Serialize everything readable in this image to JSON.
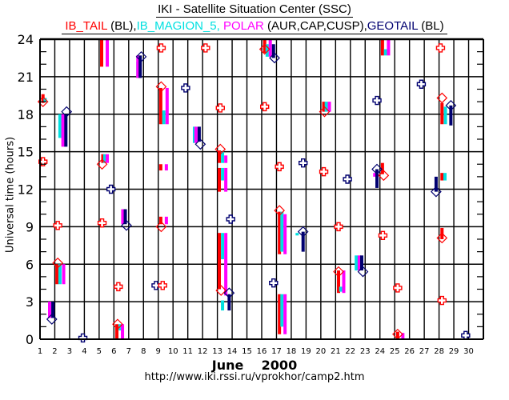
{
  "chart_data": {
    "type": "scatter",
    "title": "IKI - Satellite Situation Center (SSC)",
    "legend": [
      {
        "name": "IB_TAIL",
        "suffix": " (BL),",
        "color": "#ff0000"
      },
      {
        "name": "IB_MAGION_5,",
        "suffix": " ",
        "color": "#00e0e0"
      },
      {
        "name": "POLAR",
        "suffix": " (AUR,CAP,CUSP),",
        "color": "#ff00ff"
      },
      {
        "name": "GEOTAIL",
        "suffix": " (BL)",
        "color": "#000070"
      }
    ],
    "legend_placement": "top",
    "xlabel": "June    2000",
    "ylabel": "Universal time (hours)",
    "footer": "http://www.iki.rssi.ru/vprokhor/camp2.htm",
    "xlim": [
      1,
      31
    ],
    "ylim": [
      0,
      24
    ],
    "x_ticks": [
      1,
      2,
      3,
      4,
      5,
      6,
      7,
      8,
      9,
      10,
      11,
      12,
      13,
      14,
      15,
      16,
      17,
      18,
      19,
      20,
      21,
      22,
      23,
      24,
      25,
      26,
      27,
      28,
      29,
      30
    ],
    "y_ticks": [
      0,
      3,
      6,
      9,
      12,
      15,
      18,
      21,
      24
    ],
    "grid": true,
    "series_colors": {
      "IB_TAIL": "#ff0000",
      "IB_MAGION_5": "#00e0e0",
      "POLAR": "#ff00ff",
      "GEOTAIL": "#000070"
    },
    "intervals": [
      {
        "series": "IB_TAIL",
        "day": 1.2,
        "from": 18.9,
        "to": 19.6
      },
      {
        "series": "IB_MAGION_5",
        "day": 1.35,
        "from": 19.0,
        "to": 19.3
      },
      {
        "series": "IB_MAGION_5",
        "day": 2.35,
        "from": 16.1,
        "to": 18.0
      },
      {
        "series": "POLAR",
        "day": 2.55,
        "from": 15.4,
        "to": 18.0
      },
      {
        "series": "GEOTAIL",
        "day": 2.75,
        "from": 15.4,
        "to": 18.0
      },
      {
        "series": "IB_TAIL",
        "day": 2.15,
        "from": 4.4,
        "to": 6.0
      },
      {
        "series": "IB_MAGION_5",
        "day": 2.35,
        "from": 4.4,
        "to": 6.0
      },
      {
        "series": "POLAR",
        "day": 2.6,
        "from": 4.4,
        "to": 6.0
      },
      {
        "series": "POLAR",
        "day": 1.65,
        "from": 1.7,
        "to": 3.0
      },
      {
        "series": "GEOTAIL",
        "day": 1.87,
        "from": 1.7,
        "to": 3.0
      },
      {
        "series": "IB_TAIL",
        "day": 5.17,
        "from": 21.8,
        "to": 24.0
      },
      {
        "series": "POLAR",
        "day": 5.55,
        "from": 21.8,
        "to": 24.0
      },
      {
        "series": "IB_TAIL",
        "day": 5.25,
        "from": 14.1,
        "to": 14.8
      },
      {
        "series": "IB_MAGION_5",
        "day": 5.38,
        "from": 14.1,
        "to": 14.8
      },
      {
        "series": "POLAR",
        "day": 5.55,
        "from": 14.1,
        "to": 14.8
      },
      {
        "series": "IB_TAIL",
        "day": 6.2,
        "from": 0.0,
        "to": 1.2
      },
      {
        "series": "IB_MAGION_5",
        "day": 6.42,
        "from": 0.7,
        "to": 1.2
      },
      {
        "series": "POLAR",
        "day": 6.58,
        "from": 0.0,
        "to": 1.2
      },
      {
        "series": "POLAR",
        "day": 6.6,
        "from": 9.2,
        "to": 10.4
      },
      {
        "series": "GEOTAIL",
        "day": 6.77,
        "from": 9.2,
        "to": 10.4
      },
      {
        "series": "IB_MAGION_5",
        "day": 7.62,
        "from": 21.0,
        "to": 22.2
      },
      {
        "series": "POLAR",
        "day": 7.62,
        "from": 20.9,
        "to": 22.7
      },
      {
        "series": "GEOTAIL",
        "day": 7.78,
        "from": 20.9,
        "to": 22.7
      },
      {
        "series": "IB_TAIL",
        "day": 9.17,
        "from": 17.2,
        "to": 20.1
      },
      {
        "series": "IB_MAGION_5",
        "day": 9.38,
        "from": 17.2,
        "to": 18.3
      },
      {
        "series": "POLAR",
        "day": 9.6,
        "from": 17.2,
        "to": 20.1
      },
      {
        "series": "IB_TAIL",
        "day": 9.17,
        "from": 13.5,
        "to": 14.0
      },
      {
        "series": "POLAR",
        "day": 9.55,
        "from": 13.5,
        "to": 14.0
      },
      {
        "series": "IB_TAIL",
        "day": 9.17,
        "from": 9.2,
        "to": 9.8
      },
      {
        "series": "POLAR",
        "day": 9.55,
        "from": 9.2,
        "to": 9.8
      },
      {
        "series": "IB_MAGION_5",
        "day": 11.45,
        "from": 15.7,
        "to": 17.0
      },
      {
        "series": "POLAR",
        "day": 11.55,
        "from": 15.7,
        "to": 17.0
      },
      {
        "series": "GEOTAIL",
        "day": 11.77,
        "from": 15.8,
        "to": 17.0
      },
      {
        "series": "IB_TAIL",
        "day": 13.13,
        "from": 14.1,
        "to": 15.1
      },
      {
        "series": "IB_MAGION_5",
        "day": 13.35,
        "from": 14.1,
        "to": 15.0
      },
      {
        "series": "POLAR",
        "day": 13.57,
        "from": 14.1,
        "to": 14.7
      },
      {
        "series": "IB_TAIL",
        "day": 13.13,
        "from": 11.8,
        "to": 13.7
      },
      {
        "series": "IB_MAGION_5",
        "day": 13.35,
        "from": 12.7,
        "to": 13.7
      },
      {
        "series": "POLAR",
        "day": 13.57,
        "from": 11.8,
        "to": 13.7
      },
      {
        "series": "IB_TAIL",
        "day": 13.13,
        "from": 4.0,
        "to": 8.5
      },
      {
        "series": "IB_MAGION_5",
        "day": 13.35,
        "from": 6.4,
        "to": 8.5
      },
      {
        "series": "POLAR",
        "day": 13.57,
        "from": 3.5,
        "to": 8.5
      },
      {
        "series": "IB_MAGION_5",
        "day": 13.35,
        "from": 2.3,
        "to": 3.1
      },
      {
        "series": "GEOTAIL",
        "day": 13.8,
        "from": 2.3,
        "to": 3.6
      },
      {
        "series": "IB_TAIL",
        "day": 16.2,
        "from": 22.9,
        "to": 24.0
      },
      {
        "series": "IB_MAGION_5",
        "day": 16.37,
        "from": 22.6,
        "to": 23.6
      },
      {
        "series": "POLAR",
        "day": 16.58,
        "from": 22.6,
        "to": 24.0
      },
      {
        "series": "GEOTAIL",
        "day": 16.8,
        "from": 22.5,
        "to": 23.6
      },
      {
        "series": "IB_TAIL",
        "day": 17.2,
        "from": 6.8,
        "to": 10.2
      },
      {
        "series": "IB_MAGION_5",
        "day": 17.37,
        "from": 7.0,
        "to": 10.2
      },
      {
        "series": "POLAR",
        "day": 17.58,
        "from": 6.8,
        "to": 10.0
      },
      {
        "series": "IB_TAIL",
        "day": 17.2,
        "from": 0.4,
        "to": 3.6
      },
      {
        "series": "IB_MAGION_5",
        "day": 17.37,
        "from": 1.0,
        "to": 3.6
      },
      {
        "series": "POLAR",
        "day": 17.58,
        "from": 0.4,
        "to": 3.6
      },
      {
        "series": "GEOTAIL",
        "day": 18.8,
        "from": 7.0,
        "to": 8.6
      },
      {
        "series": "IB_MAGION_5",
        "day": 18.4,
        "from": 8.3,
        "to": 8.5
      },
      {
        "series": "IB_TAIL",
        "day": 20.2,
        "from": 18.2,
        "to": 19.0
      },
      {
        "series": "IB_MAGION_5",
        "day": 20.37,
        "from": 18.2,
        "to": 19.0
      },
      {
        "series": "POLAR",
        "day": 20.58,
        "from": 18.2,
        "to": 19.0
      },
      {
        "series": "IB_TAIL",
        "day": 21.2,
        "from": 3.7,
        "to": 5.5
      },
      {
        "series": "IB_MAGION_5",
        "day": 21.35,
        "from": 3.8,
        "to": 4.2
      },
      {
        "series": "POLAR",
        "day": 21.55,
        "from": 3.7,
        "to": 5.5
      },
      {
        "series": "IB_MAGION_5",
        "day": 22.4,
        "from": 5.5,
        "to": 6.7
      },
      {
        "series": "POLAR",
        "day": 22.6,
        "from": 5.5,
        "to": 6.7
      },
      {
        "series": "GEOTAIL",
        "day": 22.77,
        "from": 5.5,
        "to": 6.7
      },
      {
        "series": "IB_TAIL",
        "day": 24.17,
        "from": 22.7,
        "to": 24.0
      },
      {
        "series": "IB_MAGION_5",
        "day": 24.38,
        "from": 22.7,
        "to": 23.2
      },
      {
        "series": "POLAR",
        "day": 24.58,
        "from": 22.7,
        "to": 24.0
      },
      {
        "series": "POLAR",
        "day": 23.65,
        "from": 13.0,
        "to": 13.3
      },
      {
        "series": "GEOTAIL",
        "day": 23.8,
        "from": 12.1,
        "to": 13.6
      },
      {
        "series": "IB_TAIL",
        "day": 24.17,
        "from": 13.2,
        "to": 14.1
      },
      {
        "series": "IB_TAIL",
        "day": 25.2,
        "from": 0.0,
        "to": 0.6
      },
      {
        "series": "POLAR",
        "day": 25.55,
        "from": 0.0,
        "to": 0.5
      },
      {
        "series": "IB_TAIL",
        "day": 28.2,
        "from": 17.2,
        "to": 18.9
      },
      {
        "series": "IB_MAGION_5",
        "day": 28.43,
        "from": 17.2,
        "to": 18.6
      },
      {
        "series": "GEOTAIL",
        "day": 28.8,
        "from": 17.1,
        "to": 18.7
      },
      {
        "series": "IB_TAIL",
        "day": 28.2,
        "from": 12.7,
        "to": 13.3
      },
      {
        "series": "IB_MAGION_5",
        "day": 28.4,
        "from": 12.7,
        "to": 13.3
      },
      {
        "series": "GEOTAIL",
        "day": 27.8,
        "from": 11.8,
        "to": 13.0
      },
      {
        "series": "IB_TAIL",
        "day": 28.2,
        "from": 8.0,
        "to": 8.9
      }
    ],
    "diamonds": [
      {
        "series": "IB_TAIL",
        "day": 1.2,
        "hour": 19.0
      },
      {
        "series": "GEOTAIL",
        "day": 2.8,
        "hour": 18.2
      },
      {
        "series": "IB_TAIL",
        "day": 2.2,
        "hour": 6.1
      },
      {
        "series": "GEOTAIL",
        "day": 1.8,
        "hour": 1.6
      },
      {
        "series": "IB_TAIL",
        "day": 5.2,
        "hour": 14.0
      },
      {
        "series": "IB_TAIL",
        "day": 6.25,
        "hour": 1.2
      },
      {
        "series": "GEOTAIL",
        "day": 6.85,
        "hour": 9.1
      },
      {
        "series": "GEOTAIL",
        "day": 7.85,
        "hour": 22.6
      },
      {
        "series": "IB_TAIL",
        "day": 9.2,
        "hour": 20.2
      },
      {
        "series": "IB_TAIL",
        "day": 9.2,
        "hour": 9.0
      },
      {
        "series": "GEOTAIL",
        "day": 11.85,
        "hour": 15.6
      },
      {
        "series": "IB_TAIL",
        "day": 13.2,
        "hour": 15.2
      },
      {
        "series": "IB_TAIL",
        "day": 13.25,
        "hour": 3.9
      },
      {
        "series": "GEOTAIL",
        "day": 13.8,
        "hour": 3.7
      },
      {
        "series": "IB_TAIL",
        "day": 16.2,
        "hour": 23.2
      },
      {
        "series": "GEOTAIL",
        "day": 16.87,
        "hour": 22.5
      },
      {
        "series": "IB_TAIL",
        "day": 17.2,
        "hour": 10.3
      },
      {
        "series": "GEOTAIL",
        "day": 18.8,
        "hour": 8.6
      },
      {
        "series": "IB_TAIL",
        "day": 20.25,
        "hour": 18.2
      },
      {
        "series": "IB_TAIL",
        "day": 21.2,
        "hour": 5.4
      },
      {
        "series": "GEOTAIL",
        "day": 22.85,
        "hour": 5.4
      },
      {
        "series": "GEOTAIL",
        "day": 23.8,
        "hour": 13.6
      },
      {
        "series": "IB_TAIL",
        "day": 24.25,
        "hour": 13.1
      },
      {
        "series": "IB_TAIL",
        "day": 25.2,
        "hour": 0.4
      },
      {
        "series": "IB_TAIL",
        "day": 28.2,
        "hour": 19.3
      },
      {
        "series": "GEOTAIL",
        "day": 28.8,
        "hour": 18.7
      },
      {
        "series": "GEOTAIL",
        "day": 27.8,
        "hour": 11.8
      },
      {
        "series": "IB_TAIL",
        "day": 28.2,
        "hour": 8.1
      }
    ],
    "crosses": [
      {
        "series": "IB_TAIL",
        "day": 1.2,
        "hour": 14.2
      },
      {
        "series": "IB_TAIL",
        "day": 2.2,
        "hour": 9.1
      },
      {
        "series": "GEOTAIL",
        "day": 3.9,
        "hour": 0.1
      },
      {
        "series": "GEOTAIL",
        "day": 5.8,
        "hour": 12.0
      },
      {
        "series": "IB_TAIL",
        "day": 5.2,
        "hour": 9.3
      },
      {
        "series": "IB_TAIL",
        "day": 6.3,
        "hour": 4.2
      },
      {
        "series": "IB_TAIL",
        "day": 9.2,
        "hour": 23.3
      },
      {
        "series": "GEOTAIL",
        "day": 8.85,
        "hour": 4.3
      },
      {
        "series": "IB_TAIL",
        "day": 9.3,
        "hour": 4.3
      },
      {
        "series": "GEOTAIL",
        "day": 10.85,
        "hour": 20.1
      },
      {
        "series": "IB_TAIL",
        "day": 12.2,
        "hour": 23.3
      },
      {
        "series": "IB_TAIL",
        "day": 13.2,
        "hour": 18.5
      },
      {
        "series": "GEOTAIL",
        "day": 13.9,
        "hour": 9.6
      },
      {
        "series": "IB_TAIL",
        "day": 16.2,
        "hour": 18.6
      },
      {
        "series": "IB_TAIL",
        "day": 17.2,
        "hour": 13.8
      },
      {
        "series": "GEOTAIL",
        "day": 16.8,
        "hour": 4.5
      },
      {
        "series": "GEOTAIL",
        "day": 18.8,
        "hour": 14.1
      },
      {
        "series": "IB_TAIL",
        "day": 20.2,
        "hour": 13.4
      },
      {
        "series": "GEOTAIL",
        "day": 21.8,
        "hour": 12.8
      },
      {
        "series": "IB_TAIL",
        "day": 21.2,
        "hour": 9.0
      },
      {
        "series": "GEOTAIL",
        "day": 23.8,
        "hour": 19.1
      },
      {
        "series": "IB_TAIL",
        "day": 24.2,
        "hour": 8.3
      },
      {
        "series": "IB_TAIL",
        "day": 25.2,
        "hour": 4.1
      },
      {
        "series": "GEOTAIL",
        "day": 26.8,
        "hour": 20.4
      },
      {
        "series": "IB_TAIL",
        "day": 28.1,
        "hour": 23.3
      },
      {
        "series": "IB_TAIL",
        "day": 28.2,
        "hour": 3.1
      },
      {
        "series": "GEOTAIL",
        "day": 29.8,
        "hour": 0.3
      }
    ]
  }
}
